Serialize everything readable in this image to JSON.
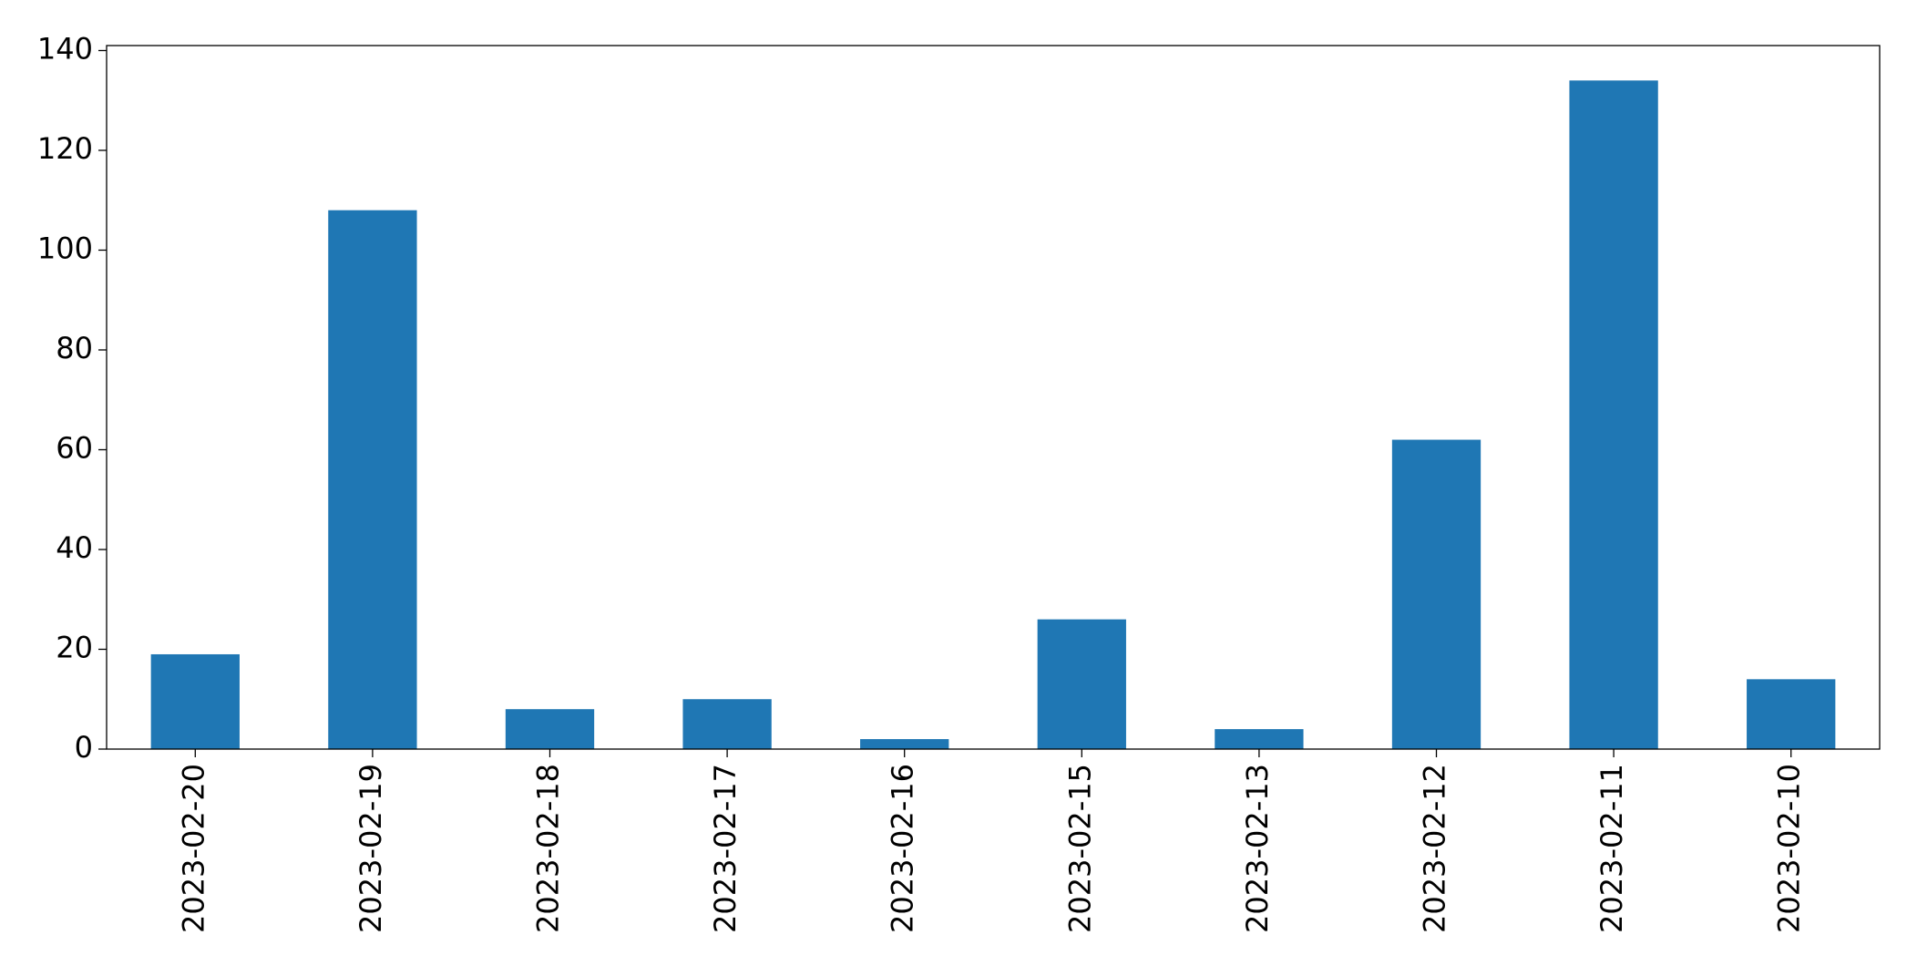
{
  "chart_data": {
    "type": "bar",
    "categories": [
      "2023-02-20",
      "2023-02-19",
      "2023-02-18",
      "2023-02-17",
      "2023-02-16",
      "2023-02-15",
      "2023-02-13",
      "2023-02-12",
      "2023-02-11",
      "2023-02-10"
    ],
    "values": [
      19,
      108,
      8,
      10,
      2,
      26,
      4,
      62,
      134,
      14
    ],
    "color": "#1f77b4",
    "ylim": [
      0,
      141
    ],
    "yticks": [
      0,
      20,
      40,
      60,
      80,
      100,
      120,
      140
    ],
    "grid": false
  }
}
